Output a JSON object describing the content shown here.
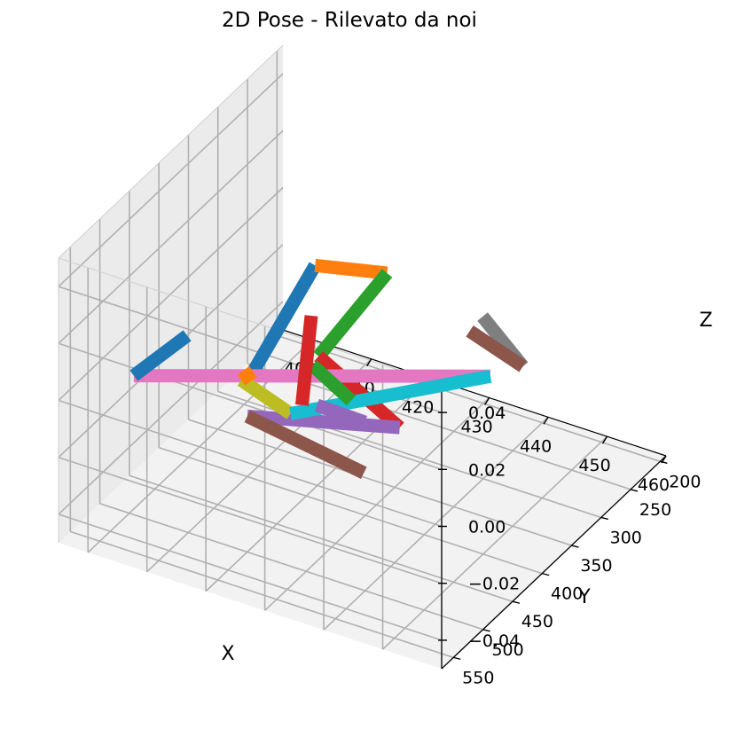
{
  "chart_data": {
    "type": "line",
    "projection": "3d",
    "title": "2D Pose - Rilevato da noi",
    "xlabel": "X",
    "ylabel": "Y",
    "zlabel": "Z",
    "xlim": [
      395,
      460
    ],
    "ylim": [
      190,
      570
    ],
    "zlim": [
      -0.05,
      0.05
    ],
    "grid": true,
    "xticks": [
      400,
      410,
      420,
      430,
      440,
      450,
      460
    ],
    "yticks": [
      200,
      250,
      300,
      350,
      400,
      450,
      500,
      550
    ],
    "zticks": [
      0.04,
      0.02,
      0.0,
      -0.02,
      -0.04
    ],
    "xtick_labels": [
      "400",
      "410",
      "420",
      "430",
      "440",
      "450",
      "460"
    ],
    "ytick_labels": [
      "200",
      "250",
      "300",
      "350",
      "400",
      "450",
      "500",
      "550"
    ],
    "ztick_labels": [
      "0.04",
      "0.02",
      "0.00",
      "−0.02",
      "−0.04"
    ],
    "series": [
      {
        "color": "#1f77b4",
        "x": [
          415.7,
          409.4
        ],
        "y": [
          446.9,
          279.2
        ],
        "z": [
          0,
          0
        ]
      },
      {
        "color": "#ff7f0e",
        "x": [
          409.4,
          419.5
        ],
        "y": [
          279.2,
          258.1
        ],
        "z": [
          0,
          0
        ]
      },
      {
        "color": "#2ca02c",
        "x": [
          419.5,
          421.9
        ],
        "y": [
          258.1,
          398.1
        ],
        "z": [
          0,
          0
        ]
      },
      {
        "color": "#d62728",
        "x": [
          421.9,
          441.6
        ],
        "y": [
          398.1,
          457.3
        ],
        "z": [
          0,
          0
        ]
      },
      {
        "color": "#9467bd",
        "x": [
          441.6,
          420.9
        ],
        "y": [
          457.3,
          508.7
        ],
        "z": [
          0,
          0
        ]
      },
      {
        "color": "#8c564b",
        "x": [
          420.9,
          443.1
        ],
        "y": [
          508.7,
          533.0
        ],
        "z": [
          0,
          0
        ]
      },
      {
        "color": "#e377c2",
        "x": [
          446.2,
          401.2
        ],
        "y": [
          349.6,
          504.4
        ],
        "z": [
          0,
          0
        ]
      },
      {
        "color": "#7f7f7f",
        "x": [
          449.0,
          437.3
        ],
        "y": [
          322.6,
          274.1
        ],
        "z": [
          0,
          0
        ]
      },
      {
        "color": "#bcbd22",
        "x": [
          415.3,
          426.0
        ],
        "y": [
          463.3,
          486.5
        ],
        "z": [
          0,
          0
        ]
      },
      {
        "color": "#17becf",
        "x": [
          426.0,
          446.2
        ],
        "y": [
          486.5,
          349.6
        ],
        "z": [
          0,
          0
        ]
      },
      {
        "color": "#1f77b4",
        "x": [
          402.6,
          401.2
        ],
        "y": [
          427.9,
          504.4
        ],
        "z": [
          0,
          0
        ]
      },
      {
        "color": "#ff7f0e",
        "x": [
          415.3,
          415.7
        ],
        "y": [
          463.3,
          446.9
        ],
        "z": [
          0,
          0
        ]
      },
      {
        "color": "#2ca02c",
        "x": [
          431.9,
          422.3
        ],
        "y": [
          442.7,
          412.7
        ],
        "z": [
          0,
          0
        ]
      },
      {
        "color": "#d62728",
        "x": [
          415.6,
          426.3
        ],
        "y": [
          347.6,
          470.2
        ],
        "z": [
          0,
          0
        ]
      },
      {
        "color": "#9467bd",
        "x": [
          428.2,
          436.5
        ],
        "y": [
          463.7,
          465.4
        ],
        "z": [
          0,
          0
        ]
      },
      {
        "color": "#8c564b",
        "x": [
          437.6,
          449.0
        ],
        "y": [
          298.9,
          322.6
        ],
        "z": [
          0,
          0
        ]
      }
    ]
  }
}
